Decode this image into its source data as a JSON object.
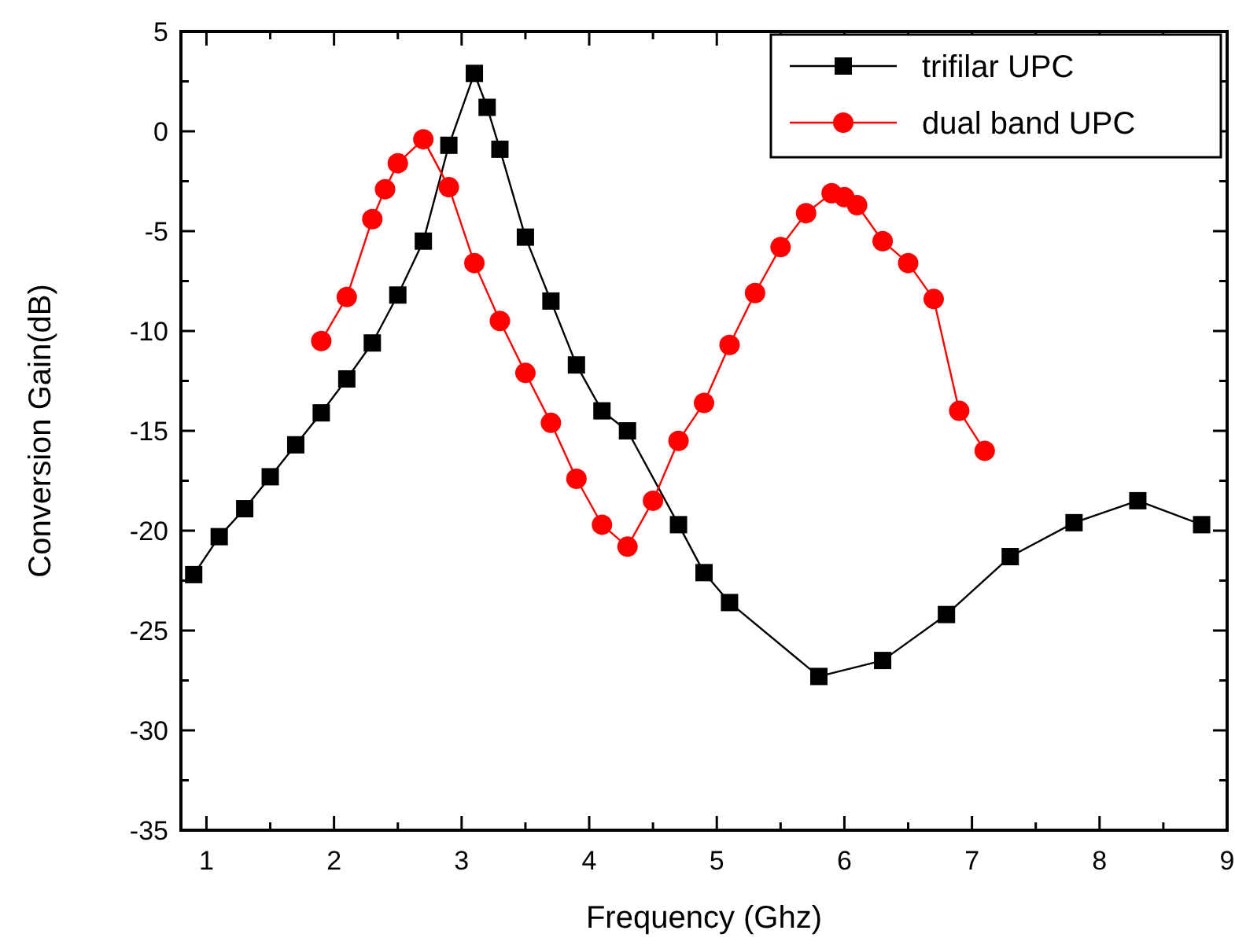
{
  "chart_data": {
    "type": "line",
    "xlabel": "Frequency (Ghz)",
    "ylabel": "Conversion Gain(dB)",
    "xlim": [
      0.8,
      9
    ],
    "ylim": [
      -35,
      5
    ],
    "xticks": [
      1,
      {
        "value": 1.5,
        "label": null
      },
      2,
      {
        "value": 2.5,
        "label": null
      },
      3,
      {
        "value": 3.5,
        "label": null
      },
      4,
      {
        "value": 4.5,
        "label": null
      },
      5,
      {
        "value": 5.5,
        "label": null
      },
      6,
      {
        "value": 6.5,
        "label": null
      },
      7,
      {
        "value": 7.5,
        "label": null
      },
      8,
      {
        "value": 8.5,
        "label": null
      },
      9
    ],
    "yticks": [
      -35,
      {
        "value": -32.5,
        "label": null
      },
      -30,
      {
        "value": -27.5,
        "label": null
      },
      -25,
      {
        "value": -22.5,
        "label": null
      },
      -20,
      {
        "value": -17.5,
        "label": null
      },
      -15,
      {
        "value": -12.5,
        "label": null
      },
      -10,
      {
        "value": -7.5,
        "label": null
      },
      -5,
      {
        "value": -2.5,
        "label": null
      },
      0,
      {
        "value": 2.5,
        "label": null
      },
      5
    ],
    "grid": false,
    "legend": "top right",
    "line_style": "solid",
    "series": [
      {
        "name": "trifilar UPC",
        "color": "#000000",
        "marker": "square",
        "x": [
          0.9,
          1.1,
          1.3,
          1.5,
          1.7,
          1.9,
          2.1,
          2.3,
          2.5,
          2.7,
          2.9,
          3.1,
          3.2,
          3.3,
          3.5,
          3.7,
          3.9,
          4.1,
          4.3,
          4.7,
          4.9,
          5.1,
          5.8,
          6.3,
          6.8,
          7.3,
          7.8,
          8.3,
          8.8
        ],
        "values": [
          -22.2,
          -20.3,
          -18.9,
          -17.3,
          -15.7,
          -14.1,
          -12.4,
          -10.6,
          -8.2,
          -5.5,
          -0.7,
          2.9,
          1.2,
          -0.9,
          -5.3,
          -8.5,
          -11.7,
          -14.0,
          -15.0,
          -19.7,
          -22.1,
          -23.6,
          -27.3,
          -26.5,
          -24.2,
          -21.3,
          -19.6,
          -18.5,
          -19.7
        ]
      },
      {
        "name": "dual band UPC",
        "color": "#ff0000",
        "marker": "circle",
        "x": [
          1.9,
          2.1,
          2.3,
          2.4,
          2.5,
          2.7,
          2.9,
          3.1,
          3.3,
          3.5,
          3.7,
          3.9,
          4.1,
          4.3,
          4.5,
          4.7,
          4.9,
          5.1,
          5.3,
          5.5,
          5.7,
          5.9,
          6.0,
          6.1,
          6.3,
          6.5,
          6.7,
          6.9,
          7.1
        ],
        "values": [
          -10.5,
          -8.3,
          -4.4,
          -2.9,
          -1.6,
          -0.4,
          -2.8,
          -6.6,
          -9.5,
          -12.1,
          -14.6,
          -17.4,
          -19.7,
          -20.8,
          -18.5,
          -15.5,
          -13.6,
          -10.7,
          -8.1,
          -5.8,
          -4.1,
          -3.1,
          -3.3,
          -3.7,
          -5.5,
          -6.6,
          -8.4,
          -14.0,
          -16.0
        ]
      }
    ]
  }
}
